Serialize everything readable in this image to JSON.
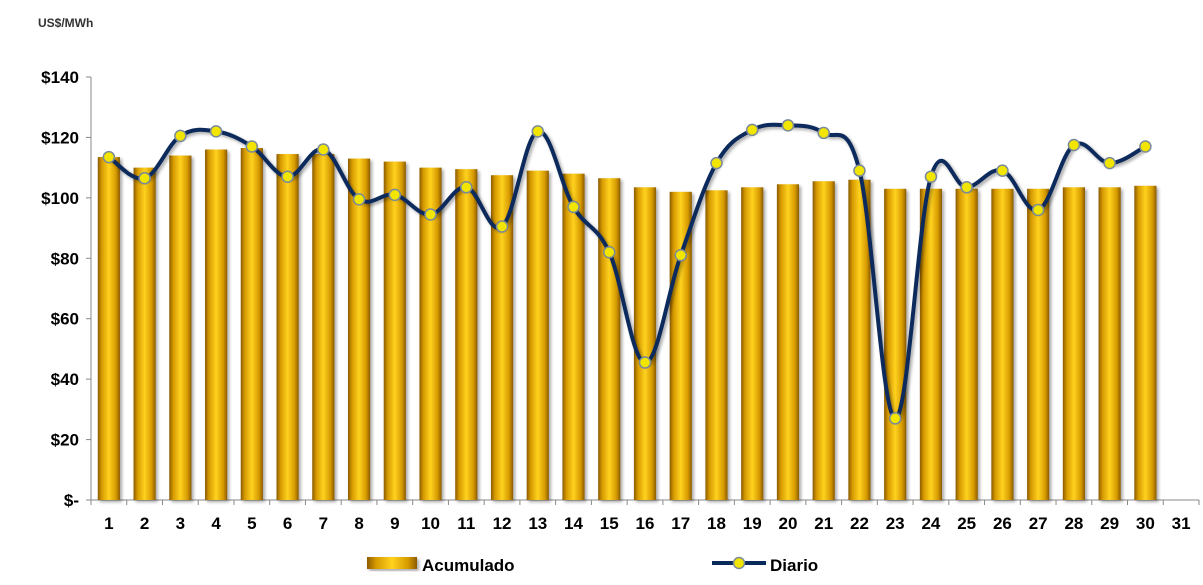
{
  "chart_data": {
    "type": "bar",
    "unit_label": "US$/MWh",
    "categories": [
      "1",
      "2",
      "3",
      "4",
      "5",
      "6",
      "7",
      "8",
      "9",
      "10",
      "11",
      "12",
      "13",
      "14",
      "15",
      "16",
      "17",
      "18",
      "19",
      "20",
      "21",
      "22",
      "23",
      "24",
      "25",
      "26",
      "27",
      "28",
      "29",
      "30",
      "31"
    ],
    "y_ticks": [
      "$-",
      "$20",
      "$40",
      "$60",
      "$80",
      "$100",
      "$120",
      "$140"
    ],
    "ylim": [
      0,
      140
    ],
    "grid": false,
    "legend_position": "bottom",
    "series": [
      {
        "name": "Acumulado",
        "kind": "bar",
        "color": "#E0A800",
        "values": [
          113.5,
          110,
          114,
          116,
          116.5,
          114.5,
          114.5,
          113,
          112,
          110,
          109.5,
          107.5,
          109,
          108,
          106.5,
          103.5,
          102,
          102.5,
          103.5,
          104.5,
          105.5,
          106,
          103,
          103,
          103,
          103,
          103,
          103.5,
          103.5,
          104,
          null
        ]
      },
      {
        "name": "Diario",
        "kind": "line",
        "color": "#0B2A5C",
        "marker_color": "#F2E600",
        "values": [
          113.5,
          106.5,
          120.5,
          122,
          117,
          107,
          116,
          99.5,
          101,
          94.5,
          103.5,
          90.5,
          122,
          97,
          82,
          45.5,
          81,
          111.5,
          122.5,
          124,
          121.5,
          109,
          27,
          107,
          103.5,
          109,
          96,
          117.5,
          111.5,
          117,
          null
        ]
      }
    ]
  }
}
